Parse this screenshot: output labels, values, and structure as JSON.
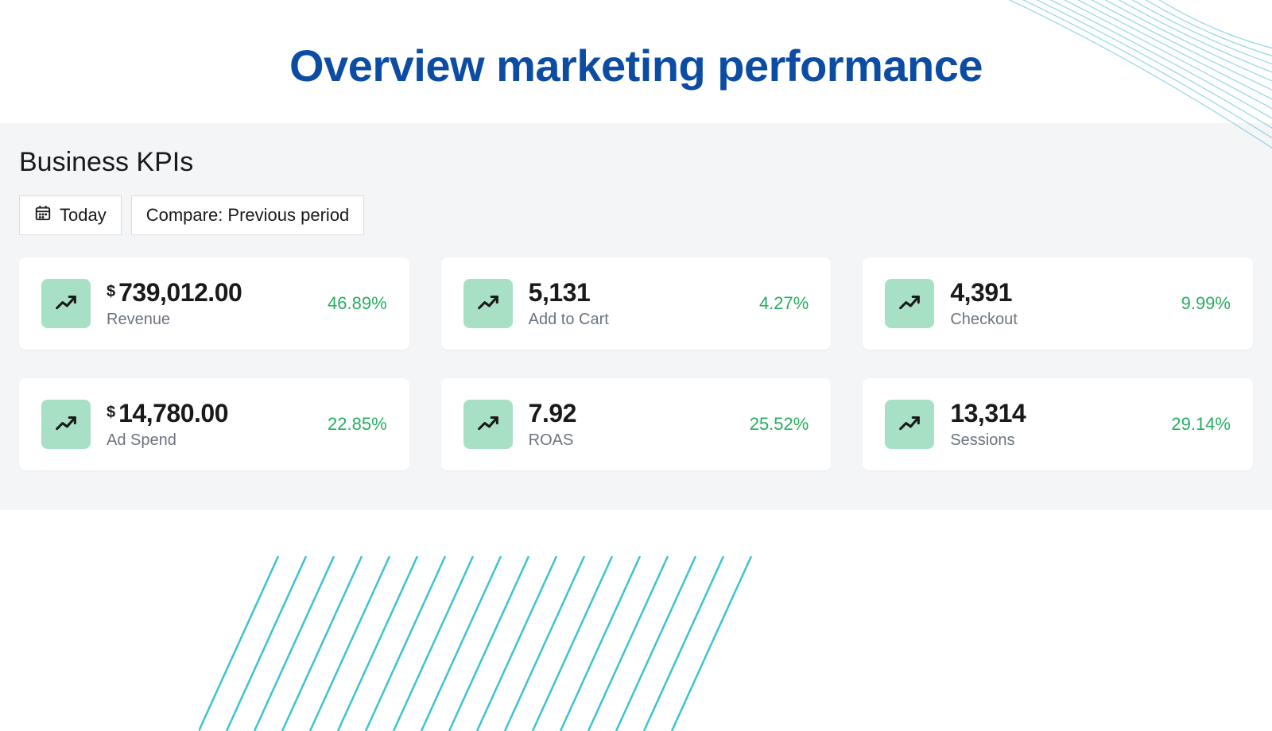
{
  "header": {
    "title": "Overview marketing performance",
    "title_color": "#0c4ca3",
    "title_fontsize": 56
  },
  "panel": {
    "title": "Business KPIs",
    "background_color": "#f4f5f7",
    "controls": {
      "date_label": "Today",
      "compare_label": "Compare: Previous period"
    }
  },
  "kpis": [
    {
      "prefix": "$",
      "value": "739,012.00",
      "label": "Revenue",
      "change": "46.89%",
      "change_color": "#27ae60",
      "icon_bg": "#a8e0c5"
    },
    {
      "prefix": "",
      "value": "5,131",
      "label": "Add to Cart",
      "change": "4.27%",
      "change_color": "#27ae60",
      "icon_bg": "#a8e0c5"
    },
    {
      "prefix": "",
      "value": "4,391",
      "label": "Checkout",
      "change": "9.99%",
      "change_color": "#27ae60",
      "icon_bg": "#a8e0c5"
    },
    {
      "prefix": "$",
      "value": "14,780.00",
      "label": "Ad Spend",
      "change": "22.85%",
      "change_color": "#27ae60",
      "icon_bg": "#a8e0c5"
    },
    {
      "prefix": "",
      "value": "7.92",
      "label": "ROAS",
      "change": "25.52%",
      "change_color": "#27ae60",
      "icon_bg": "#a8e0c5"
    },
    {
      "prefix": "",
      "value": "13,314",
      "label": "Sessions",
      "change": "29.14%",
      "change_color": "#27ae60",
      "icon_bg": "#a8e0c5"
    }
  ],
  "decor": {
    "arcs_color": "#4db8d8",
    "lines_color": "#1cb9c8"
  },
  "card_style": {
    "background_color": "#ffffff",
    "border_radius": 8,
    "label_color": "#6c7480",
    "value_fontsize": 32
  }
}
